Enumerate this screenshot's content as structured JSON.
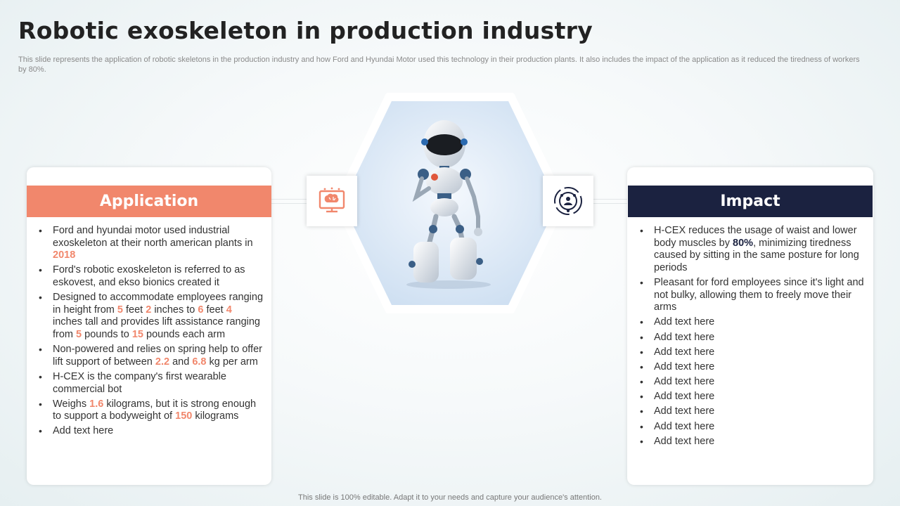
{
  "title": "Robotic exoskeleton in production industry",
  "subtitle": "This slide represents the application of robotic skeletons in the production industry and how Ford and Hyundai Motor used this technology in their production plants. It also includes the impact of the application as it reduced the tiredness of workers by 80%.",
  "application": {
    "heading": "Application",
    "items": [
      [
        {
          "t": "Ford and hyundai motor used industrial exoskeleton at their north american plants in "
        },
        {
          "t": "2018",
          "h": true
        }
      ],
      [
        {
          "t": "Ford's robotic exoskeleton is referred to as eskovest, and ekso bionics created it"
        }
      ],
      [
        {
          "t": "Designed to accommodate employees ranging in height from "
        },
        {
          "t": "5",
          "h": true
        },
        {
          "t": " feet "
        },
        {
          "t": "2",
          "h": true
        },
        {
          "t": " inches to "
        },
        {
          "t": "6",
          "h": true
        },
        {
          "t": " feet "
        },
        {
          "t": "4",
          "h": true
        },
        {
          "t": " inches tall and provides lift assistance ranging from "
        },
        {
          "t": "5",
          "h": true
        },
        {
          "t": " pounds to "
        },
        {
          "t": "15",
          "h": true
        },
        {
          "t": " pounds each arm"
        }
      ],
      [
        {
          "t": "Non-powered and relies on spring help to offer lift support of between "
        },
        {
          "t": "2.2",
          "h": true
        },
        {
          "t": " and "
        },
        {
          "t": "6.8",
          "h": true
        },
        {
          "t": " kg per arm"
        }
      ],
      [
        {
          "t": "H-CEX is the company's first wearable commercial bot"
        }
      ],
      [
        {
          "t": "Weighs "
        },
        {
          "t": "1.6",
          "h": true
        },
        {
          "t": " kilograms, but it is strong enough to support a bodyweight of "
        },
        {
          "t": "150",
          "h": true
        },
        {
          "t": " kilograms"
        }
      ],
      [
        {
          "t": "Add text here"
        }
      ]
    ]
  },
  "impact": {
    "heading": "Impact",
    "items": [
      [
        {
          "t": "H-CEX reduces the usage of waist and lower body muscles by "
        },
        {
          "t": "80%",
          "h": true
        },
        {
          "t": ", minimizing tiredness caused by sitting in the same posture for long periods"
        }
      ],
      [
        {
          "t": "Pleasant for ford employees since it's light and not bulky, allowing them to freely move their arms"
        }
      ],
      [
        {
          "t": "Add text here"
        }
      ],
      [
        {
          "t": "Add text here"
        }
      ],
      [
        {
          "t": "Add text here"
        }
      ],
      [
        {
          "t": "Add text here"
        }
      ],
      [
        {
          "t": "Add text here"
        }
      ],
      [
        {
          "t": "Add text here"
        }
      ],
      [
        {
          "t": "Add text here"
        }
      ],
      [
        {
          "t": "Add text here"
        }
      ],
      [
        {
          "t": "Add text here"
        }
      ]
    ]
  },
  "icons": {
    "left": "brain-monitor-icon",
    "right": "target-people-icon"
  },
  "colors": {
    "accent": "#f1876c",
    "navy": "#1b2240"
  },
  "footer": "This slide is 100% editable. Adapt it to your needs and capture your audience's attention."
}
